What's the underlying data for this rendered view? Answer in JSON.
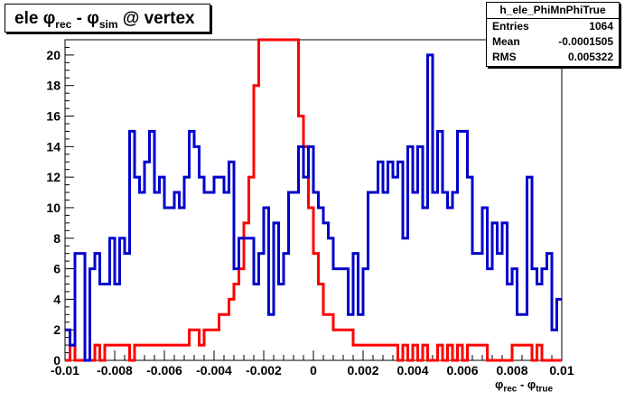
{
  "title": {
    "prefix": "ele φ",
    "sub1": "rec",
    "mid": " - φ",
    "sub2": "sim",
    "suffix": " @ vertex"
  },
  "stats": {
    "name": "h_ele_PhiMnPhiTrue",
    "entries_label": "Entries",
    "entries_value": "1064",
    "mean_label": "Mean",
    "mean_value": "-0.0001505",
    "rms_label": "RMS",
    "rms_value": "0.005322"
  },
  "x_axis": {
    "label_phi1": "φ",
    "label_sub1": "rec",
    "label_mid": " - φ",
    "label_sub2": "true",
    "ticks": [
      "-0.01",
      "-0.008",
      "-0.006",
      "-0.004",
      "-0.002",
      "0",
      "0.002",
      "0.004",
      "0.006",
      "0.008",
      "0.01"
    ]
  },
  "y_axis": {
    "ticks": [
      "0",
      "2",
      "4",
      "6",
      "8",
      "10",
      "12",
      "14",
      "16",
      "18",
      "20"
    ]
  },
  "chart_data": {
    "type": "histogram",
    "xlim": [
      -0.01,
      0.01
    ],
    "ylim": [
      0,
      21
    ],
    "bin_width": 0.0002,
    "grid": false,
    "series": [
      {
        "color": "#ff0000",
        "values": [
          0,
          1,
          0,
          0,
          0,
          0,
          1,
          0,
          1,
          1,
          1,
          1,
          1,
          0,
          1,
          1,
          1,
          1,
          1,
          1,
          1,
          1,
          1,
          1,
          1,
          2,
          2,
          1,
          2,
          2,
          2,
          3,
          3,
          4,
          5,
          6,
          9,
          12,
          18,
          21,
          21,
          21,
          21,
          21,
          21,
          21,
          21,
          16,
          14,
          10,
          7,
          5,
          3,
          3,
          2,
          2,
          2,
          2,
          1,
          1,
          1,
          1,
          1,
          1,
          1,
          1,
          1,
          0,
          1,
          0,
          1,
          0,
          1,
          0,
          0,
          1,
          0,
          1,
          0,
          1,
          0,
          1,
          1,
          1,
          1,
          0,
          0,
          0,
          0,
          0,
          1,
          1,
          1,
          1,
          0,
          1,
          0,
          0,
          0,
          0
        ]
      },
      {
        "color": "#0000cc",
        "values": [
          2,
          1,
          7,
          7,
          0,
          6,
          7,
          5,
          5,
          8,
          5,
          8,
          7,
          15,
          12,
          11,
          13,
          15,
          11,
          12,
          10,
          10,
          11,
          10,
          12,
          15,
          14,
          12,
          11,
          11,
          12,
          12,
          11,
          13,
          6,
          8,
          8,
          8,
          5,
          7,
          10,
          3,
          9,
          5,
          7,
          11,
          11,
          14,
          12,
          14,
          11,
          10,
          9,
          8,
          6,
          6,
          6,
          3,
          7,
          3,
          6,
          11,
          11,
          13,
          11,
          13,
          12,
          13,
          8,
          14,
          11,
          14,
          10,
          20,
          11,
          15,
          11,
          10,
          11,
          15,
          15,
          12,
          7,
          7,
          10,
          6,
          9,
          7,
          9,
          5,
          6,
          3,
          3,
          12,
          6,
          5,
          6,
          7,
          2,
          4
        ]
      }
    ]
  }
}
